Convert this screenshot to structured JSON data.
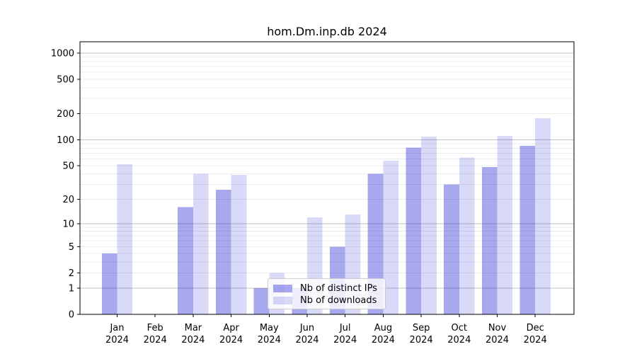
{
  "title": "hom.Dm.inp.db 2024",
  "legend": {
    "items": [
      {
        "label": "Nb of distinct IPs",
        "color": "rgba(0,0,205,0.34)"
      },
      {
        "label": "Nb of downloads",
        "color": "rgba(0,0,205,0.15)"
      }
    ]
  },
  "colors": {
    "bar_base": "#0000cd",
    "ips_fill": "rgba(0,0,205,0.34)",
    "downloads_fill": "rgba(0,0,205,0.15)",
    "major_grid": "#c2c2c2",
    "minor_grid": "#ececec",
    "axis": "#000000",
    "legend_border": "#cccccc",
    "legend_bg": "rgba(255,255,255,0.8)"
  },
  "chart_data": {
    "type": "bar",
    "title": "hom.Dm.inp.db 2024",
    "y_scale": "log1p",
    "grid": true,
    "legend_position": "lower-center",
    "categories": [
      "Jan 2024",
      "Feb 2024",
      "Mar 2024",
      "Apr 2024",
      "May 2024",
      "Jun 2024",
      "Jul 2024",
      "Aug 2024",
      "Sep 2024",
      "Oct 2024",
      "Nov 2024",
      "Dec 2024"
    ],
    "month_labels": [
      "Jan",
      "Feb",
      "Mar",
      "Apr",
      "May",
      "Jun",
      "Jul",
      "Aug",
      "Sep",
      "Oct",
      "Nov",
      "Dec"
    ],
    "year_label": "2024",
    "series": [
      {
        "name": "Nb of distinct IPs",
        "values": [
          4,
          0,
          16,
          26,
          1,
          1,
          5,
          40,
          81,
          30,
          48,
          85
        ]
      },
      {
        "name": "Nb of downloads",
        "values": [
          52,
          0,
          40,
          39,
          2,
          12,
          13,
          57,
          109,
          62,
          111,
          178
        ]
      }
    ],
    "y_tick_labels": [
      "0",
      "1",
      "2",
      "5",
      "10",
      "20",
      "50",
      "100",
      "200",
      "500",
      "1000"
    ],
    "y_tick_values": [
      0,
      1,
      2,
      5,
      10,
      20,
      50,
      100,
      200,
      500,
      1000
    ],
    "y_major_grid_values": [
      1,
      10,
      100,
      1000
    ],
    "ylim": [
      0,
      1300
    ]
  }
}
